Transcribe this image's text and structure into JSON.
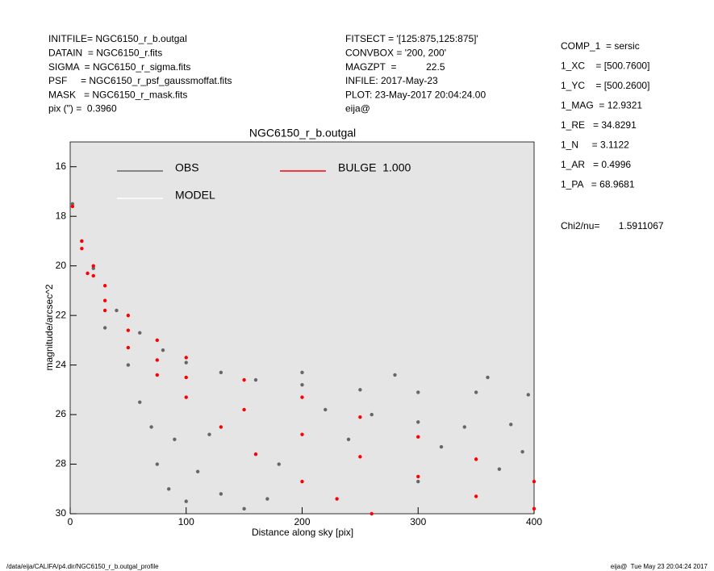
{
  "info_left": [
    "INITFILE= NGC6150_r_b.outgal",
    "DATAIN  = NGC6150_r.fits",
    "SIGMA  = NGC6150_r_sigma.fits",
    "PSF     = NGC6150_r_psf_gaussmoffat.fits",
    "MASK   = NGC6150_r_mask.fits",
    "pix (\") =  0.3960"
  ],
  "info_middle": [
    "FITSECT = '[125:875,125:875]'",
    "CONVBOX = '200, 200'",
    "MAGZPT  =           22.5",
    "INFILE: 2017-May-23",
    "PLOT: 23-May-2017 20:04:24.00",
    "eija@"
  ],
  "info_right": [
    "COMP_1  = sersic",
    "1_XC    = [500.7600]",
    "1_YC    = [500.2600]",
    "1_MAG  = 12.9321",
    "1_RE   = 34.8291",
    "1_N     = 3.1122",
    "1_AR   = 0.4996",
    "1_PA   = 68.9681"
  ],
  "fit_statistic": "Chi2/nu=       1.5911067",
  "footer_left": "/data/eija/CALIFA/p4.dir/NGC6150_r_b.outgal_profile",
  "footer_right": "eija@  Tue May 23 20:04:24 2017",
  "chart_data": {
    "type": "scatter",
    "title": "NGC6150_r_b.outgal",
    "x_label": "Distance along sky [pix]",
    "y_label": "magnitude/arcsec^2",
    "xlim": [
      0,
      400
    ],
    "xticks": [
      0,
      100,
      200,
      300,
      400
    ],
    "ylim": [
      15,
      30
    ],
    "y_inverted": true,
    "yticks": [
      16,
      18,
      20,
      22,
      24,
      26,
      28,
      30
    ],
    "background": "#e5e5e5",
    "series": [
      {
        "name": "OBS",
        "color": "#666666",
        "x": [
          2,
          10,
          20,
          40,
          60,
          80,
          100,
          130,
          160,
          200,
          250,
          300,
          350,
          395,
          220,
          260,
          300,
          340,
          380,
          240,
          320,
          390,
          280,
          360,
          200,
          30,
          50,
          60,
          70,
          75,
          85,
          100,
          110,
          130,
          150,
          90,
          120,
          180,
          300,
          370,
          170
        ],
        "values": [
          17.5,
          19.0,
          20.1,
          21.8,
          22.7,
          23.4,
          23.9,
          24.3,
          24.6,
          24.8,
          25.0,
          25.1,
          25.1,
          25.2,
          25.8,
          26.0,
          26.3,
          26.5,
          26.4,
          27.0,
          27.3,
          27.5,
          24.4,
          24.5,
          24.3,
          22.5,
          24.0,
          25.5,
          26.5,
          28.0,
          29.0,
          29.5,
          28.3,
          29.2,
          29.8,
          27.0,
          26.8,
          28.0,
          28.7,
          28.2,
          29.4
        ]
      },
      {
        "name": "MODEL",
        "color": "#ffffff",
        "x": [],
        "values": []
      },
      {
        "name": "BULGE  1.000",
        "color": "#ff0000",
        "x": [
          2,
          10,
          20,
          30,
          50,
          75,
          100,
          150,
          200,
          250,
          300,
          350,
          400,
          10,
          20,
          30,
          50,
          75,
          100,
          150,
          200,
          250,
          300,
          350,
          400,
          15,
          30,
          50,
          75,
          100,
          130,
          160,
          200,
          230,
          260
        ],
        "values": [
          17.6,
          19.0,
          20.0,
          20.8,
          22.0,
          23.0,
          23.7,
          24.6,
          25.3,
          26.1,
          26.9,
          27.8,
          28.7,
          19.3,
          20.4,
          21.4,
          22.6,
          23.8,
          24.5,
          25.8,
          26.8,
          27.7,
          28.5,
          29.3,
          29.8,
          20.3,
          21.8,
          23.3,
          24.4,
          25.3,
          26.5,
          27.6,
          28.7,
          29.4,
          30.0
        ]
      }
    ]
  }
}
